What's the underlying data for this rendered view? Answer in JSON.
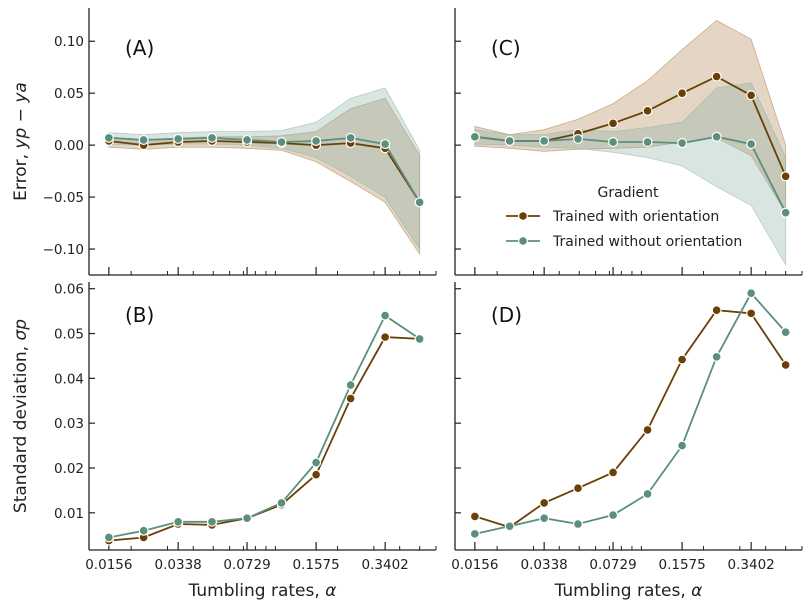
{
  "chart_data": {
    "type": "line",
    "legend": {
      "title": "Gradient",
      "placement": "center-right of panel C"
    },
    "series_styles": [
      {
        "name": "Trained with orientation",
        "color": "#6b3f05",
        "band_color": "#b38756"
      },
      {
        "name": "Trained without orientation",
        "color": "#5b8f7d",
        "band_color": "#8fb5a8"
      }
    ],
    "x_axis": {
      "label_text": "Tumbling rates, ",
      "label_symbol": "α",
      "scale": "log",
      "tick_labels": [
        "0.0156",
        "0.0338",
        "0.0729",
        "0.1575",
        "0.3402"
      ],
      "tick_values": [
        0.0156,
        0.0338,
        0.0729,
        0.1575,
        0.3402
      ]
    },
    "x": [
      0.0156,
      0.023,
      0.0338,
      0.0493,
      0.0729,
      0.1071,
      0.1575,
      0.2315,
      0.3402,
      0.5
    ],
    "panels": [
      {
        "id": "A",
        "label": "(A)",
        "ylabel_text": "Error, ",
        "ylabel_symbol": "yp − ya",
        "ylim": [
          -0.125,
          0.132
        ],
        "yticks": [
          0.1,
          0.05,
          0.0,
          -0.05,
          -0.1
        ],
        "ytick_labels": [
          "0.10",
          "0.05",
          "0.00",
          "−0.05",
          "−0.10"
        ],
        "series": [
          {
            "name": "Trained with orientation",
            "values": [
              0.004,
              0.0,
              0.003,
              0.004,
              0.003,
              0.002,
              0.0,
              0.002,
              -0.003,
              -0.055
            ],
            "upper": [
              0.008,
              0.005,
              0.007,
              0.008,
              0.008,
              0.009,
              0.013,
              0.035,
              0.045,
              -0.01
            ],
            "lower": [
              -0.002,
              -0.004,
              -0.002,
              -0.002,
              -0.003,
              -0.005,
              -0.016,
              -0.035,
              -0.055,
              -0.105
            ]
          },
          {
            "name": "Trained without orientation",
            "values": [
              0.007,
              0.005,
              0.006,
              0.007,
              0.005,
              0.003,
              0.004,
              0.007,
              0.001,
              -0.055
            ],
            "upper": [
              0.012,
              0.01,
              0.012,
              0.013,
              0.013,
              0.014,
              0.022,
              0.045,
              0.055,
              -0.005
            ],
            "lower": [
              0.001,
              0.0,
              0.001,
              0.001,
              0.0,
              -0.003,
              -0.012,
              -0.03,
              -0.05,
              -0.1
            ]
          }
        ]
      },
      {
        "id": "C",
        "label": "(C)",
        "ylim": [
          -0.125,
          0.132
        ],
        "yticks": [
          0.1,
          0.05,
          0.0,
          -0.05,
          -0.1
        ],
        "series": [
          {
            "name": "Trained with orientation",
            "values": [
              0.008,
              0.004,
              0.004,
              0.011,
              0.021,
              0.033,
              0.05,
              0.066,
              0.048,
              -0.03
            ],
            "upper": [
              0.018,
              0.01,
              0.015,
              0.025,
              0.04,
              0.062,
              0.092,
              0.12,
              0.102,
              0.0
            ],
            "lower": [
              -0.001,
              -0.003,
              -0.006,
              -0.004,
              -0.003,
              -0.002,
              0.003,
              0.007,
              -0.01,
              -0.065
            ]
          },
          {
            "name": "Trained without orientation",
            "values": [
              0.008,
              0.004,
              0.004,
              0.006,
              0.003,
              0.003,
              0.002,
              0.008,
              0.001,
              -0.065
            ],
            "upper": [
              0.015,
              0.01,
              0.01,
              0.015,
              0.013,
              0.017,
              0.022,
              0.055,
              0.06,
              -0.012
            ],
            "lower": [
              0.001,
              0.0,
              -0.002,
              -0.003,
              -0.007,
              -0.012,
              -0.02,
              -0.04,
              -0.058,
              -0.115
            ]
          }
        ]
      },
      {
        "id": "B",
        "label": "(B)",
        "ylabel_text": "Standard deviation, ",
        "ylabel_symbol": "σp",
        "ylim": [
          0.0017,
          0.0615
        ],
        "yticks": [
          0.01,
          0.02,
          0.03,
          0.04,
          0.05,
          0.06
        ],
        "ytick_labels": [
          "0.01",
          "0.02",
          "0.03",
          "0.04",
          "0.05",
          "0.06"
        ],
        "series": [
          {
            "name": "Trained with orientation",
            "values": [
              0.0038,
              0.0045,
              0.0075,
              0.0073,
              0.0088,
              0.0118,
              0.0185,
              0.0355,
              0.0492,
              0.0488
            ]
          },
          {
            "name": "Trained without orientation",
            "values": [
              0.0045,
              0.006,
              0.008,
              0.008,
              0.0088,
              0.0122,
              0.0212,
              0.0385,
              0.054,
              0.0488
            ]
          }
        ]
      },
      {
        "id": "D",
        "label": "(D)",
        "ylim": [
          0.0017,
          0.0615
        ],
        "yticks": [
          0.01,
          0.02,
          0.03,
          0.04,
          0.05,
          0.06
        ],
        "series": [
          {
            "name": "Trained with orientation",
            "values": [
              0.0092,
              0.0068,
              0.0122,
              0.0155,
              0.019,
              0.0285,
              0.0442,
              0.0552,
              0.0545,
              0.043
            ]
          },
          {
            "name": "Trained without orientation",
            "values": [
              0.0053,
              0.007,
              0.0088,
              0.0075,
              0.0095,
              0.0142,
              0.025,
              0.0448,
              0.059,
              0.0503
            ]
          }
        ]
      }
    ]
  }
}
